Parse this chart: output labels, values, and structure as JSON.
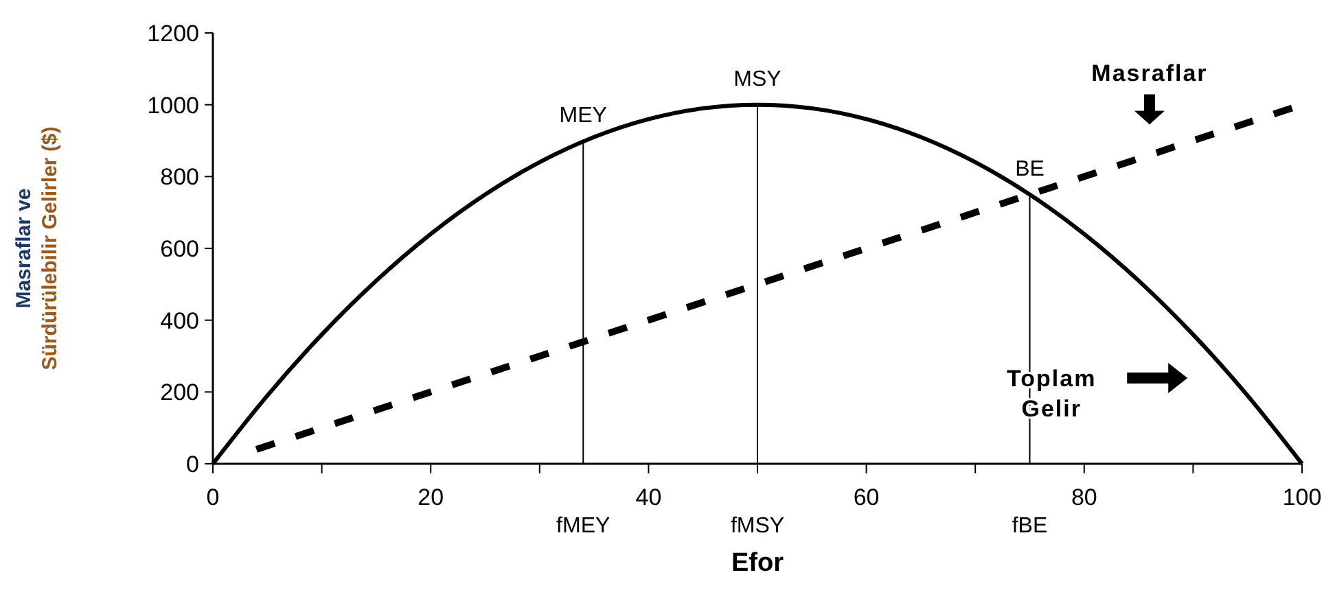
{
  "chart_data": {
    "type": "line",
    "xlabel": "Efor",
    "ylabel": "Masraflar ve Sürdürülebilir Gelirler ($)",
    "xlim": [
      0,
      100
    ],
    "ylim": [
      0,
      1200
    ],
    "xticks": [
      0,
      {
        "value": 10,
        "label": null
      },
      20,
      {
        "value": 30,
        "label": null
      },
      40,
      {
        "value": 50,
        "label": null
      },
      60,
      {
        "value": 70,
        "label": null
      },
      80,
      {
        "value": 90,
        "label": null
      },
      100
    ],
    "yticks": [
      0,
      200,
      400,
      600,
      800,
      1000,
      1200
    ],
    "grid": false,
    "marker": "none",
    "series": [
      {
        "color": "#000000",
        "line_style": "solid",
        "x": [
          0,
          5,
          10,
          15,
          20,
          25,
          30,
          35,
          40,
          45,
          50,
          55,
          60,
          65,
          70,
          75,
          80,
          85,
          90,
          95,
          100
        ],
        "values": [
          0,
          190,
          360,
          510,
          640,
          750,
          840,
          910,
          960,
          990,
          1000,
          990,
          960,
          910,
          840,
          750,
          640,
          510,
          360,
          190,
          0
        ]
      },
      {
        "name": "Masraflar",
        "color": "#000000",
        "line_style": "dashed",
        "x": [
          4,
          100
        ],
        "values": [
          40,
          1000
        ]
      }
    ],
    "ref_lines": [
      {
        "axis": "x",
        "value": 34,
        "label": "fMEY",
        "color": "#000000"
      },
      {
        "axis": "x",
        "value": 50,
        "label": "fMSY",
        "color": "#000000"
      },
      {
        "axis": "x",
        "value": 75,
        "label": "fBE",
        "color": "#000000"
      }
    ],
    "annotations": [
      {
        "text": "MEY",
        "x": 34,
        "y": 898
      },
      {
        "text": "MSY",
        "x": 50,
        "y": 1000
      },
      {
        "text": "BE",
        "x": 75,
        "y": 750
      },
      "Toplam Gelir"
    ]
  }
}
